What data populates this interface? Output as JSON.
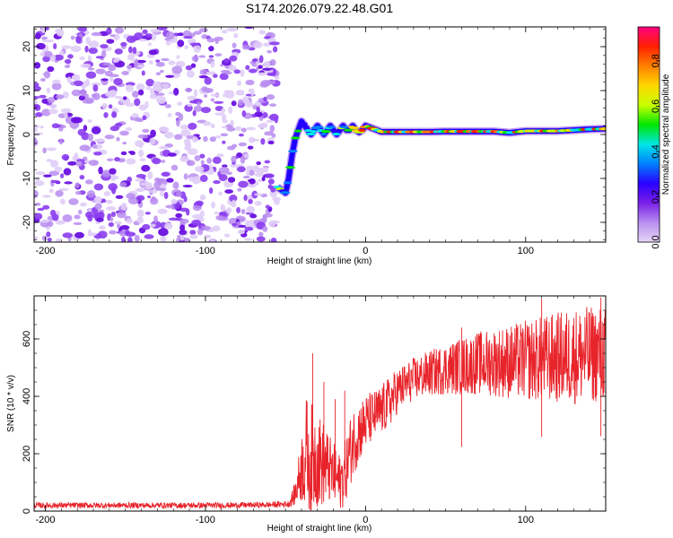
{
  "figure": {
    "title": "S174.2026.079.22.48.G01"
  },
  "chart_data": [
    {
      "type": "heatmap",
      "title": "S174.2026.079.22.48.G01",
      "xlabel": "Height of straight line (km)",
      "ylabel": "Frequency (Hz)",
      "xlim": [
        -207,
        150
      ],
      "ylim": [
        -24.5,
        24.5
      ],
      "x_ticks": [
        -200,
        -100,
        0,
        100
      ],
      "x_tick_labels": [
        "-200",
        "-100",
        "0",
        "100"
      ],
      "y_ticks": [
        20,
        10,
        0,
        -10,
        -20
      ],
      "y_tick_labels": [
        "20",
        "10",
        "0",
        "-10",
        "-20"
      ],
      "noise_region_x": [
        -207,
        -55
      ],
      "signal_track": {
        "x": [
          -55,
          -53,
          -51,
          -50,
          -48,
          -46,
          -44,
          -42,
          -40,
          -38,
          -36,
          -34,
          -32,
          -30,
          -28,
          -26,
          -24,
          -22,
          -20,
          -18,
          -16,
          -14,
          -12,
          -10,
          -8,
          -6,
          -4,
          -2,
          0,
          10,
          20,
          30,
          40,
          50,
          60,
          70,
          80,
          90,
          100,
          110,
          120,
          130,
          140,
          150
        ],
        "frequency": [
          -12,
          -12.5,
          -13,
          -13.3,
          -10,
          -5,
          -1,
          1,
          3,
          2,
          1,
          0,
          1,
          2,
          1,
          0,
          1,
          2,
          1,
          0,
          1,
          2,
          1,
          1,
          2,
          1,
          0.5,
          1,
          2,
          0.6,
          0.6,
          0.6,
          0.6,
          0.7,
          0.7,
          0.7,
          0.7,
          0.4,
          0.8,
          0.8,
          0.8,
          1.0,
          1.2,
          1.3
        ]
      },
      "colorbar": {
        "label": "Normalized spectral amplitude",
        "range": [
          0,
          0.95
        ],
        "ticks": [
          0.0,
          0.2,
          0.4,
          0.6,
          0.8
        ],
        "tick_labels": [
          "0.0",
          "0.2",
          "0.4",
          "0.6",
          "0.8"
        ],
        "colors": [
          "#e6d6f5",
          "#b78ff0",
          "#7a1fe8",
          "#2a00ff",
          "#0080ff",
          "#00e6e6",
          "#00e600",
          "#c8ff00",
          "#ffd700",
          "#ff8000",
          "#ff2000",
          "#ff0080"
        ]
      }
    },
    {
      "type": "line",
      "xlabel": "Height of straight line (km)",
      "ylabel": "SNR (10 * v/v)",
      "xlim": [
        -207,
        150
      ],
      "ylim": [
        0,
        750
      ],
      "x_ticks": [
        -200,
        -100,
        0,
        100
      ],
      "x_tick_labels": [
        "-200",
        "-100",
        "0",
        "100"
      ],
      "y_ticks": [
        0,
        200,
        400,
        600
      ],
      "y_tick_labels": [
        "0",
        "200",
        "400",
        "600"
      ],
      "series": [
        {
          "name": "SNR",
          "color": "#e8242b",
          "x": [
            -207,
            -180,
            -150,
            -120,
            -90,
            -60,
            -48,
            -44,
            -40,
            -37,
            -34,
            -31,
            -28,
            -25,
            -22,
            -19,
            -16,
            -13,
            -10,
            -7,
            -4,
            -1,
            2,
            5,
            10,
            15,
            20,
            30,
            40,
            50,
            60,
            70,
            80,
            90,
            100,
            110,
            120,
            130,
            140,
            150
          ],
          "center": [
            20,
            20,
            20,
            20,
            20,
            22,
            25,
            60,
            150,
            200,
            180,
            190,
            170,
            160,
            140,
            120,
            100,
            130,
            200,
            250,
            280,
            300,
            320,
            330,
            350,
            380,
            420,
            460,
            480,
            495,
            505,
            515,
            520,
            520,
            525,
            530,
            535,
            540,
            545,
            550
          ],
          "spread": [
            10,
            10,
            10,
            10,
            10,
            10,
            12,
            40,
            120,
            200,
            200,
            180,
            160,
            140,
            120,
            110,
            100,
            110,
            120,
            120,
            110,
            100,
            95,
            90,
            90,
            90,
            80,
            75,
            80,
            90,
            100,
            110,
            120,
            130,
            140,
            150,
            160,
            170,
            170,
            170
          ],
          "spikes": [
            {
              "x": -33,
              "y": 550
            },
            {
              "x": -26,
              "y": 450
            },
            {
              "x": -19,
              "y": 390
            },
            {
              "x": -13,
              "y": 420
            },
            {
              "x": 60,
              "y": 640
            },
            {
              "x": 110,
              "y": 740
            },
            {
              "x": 147,
              "y": 745
            }
          ]
        }
      ]
    }
  ]
}
